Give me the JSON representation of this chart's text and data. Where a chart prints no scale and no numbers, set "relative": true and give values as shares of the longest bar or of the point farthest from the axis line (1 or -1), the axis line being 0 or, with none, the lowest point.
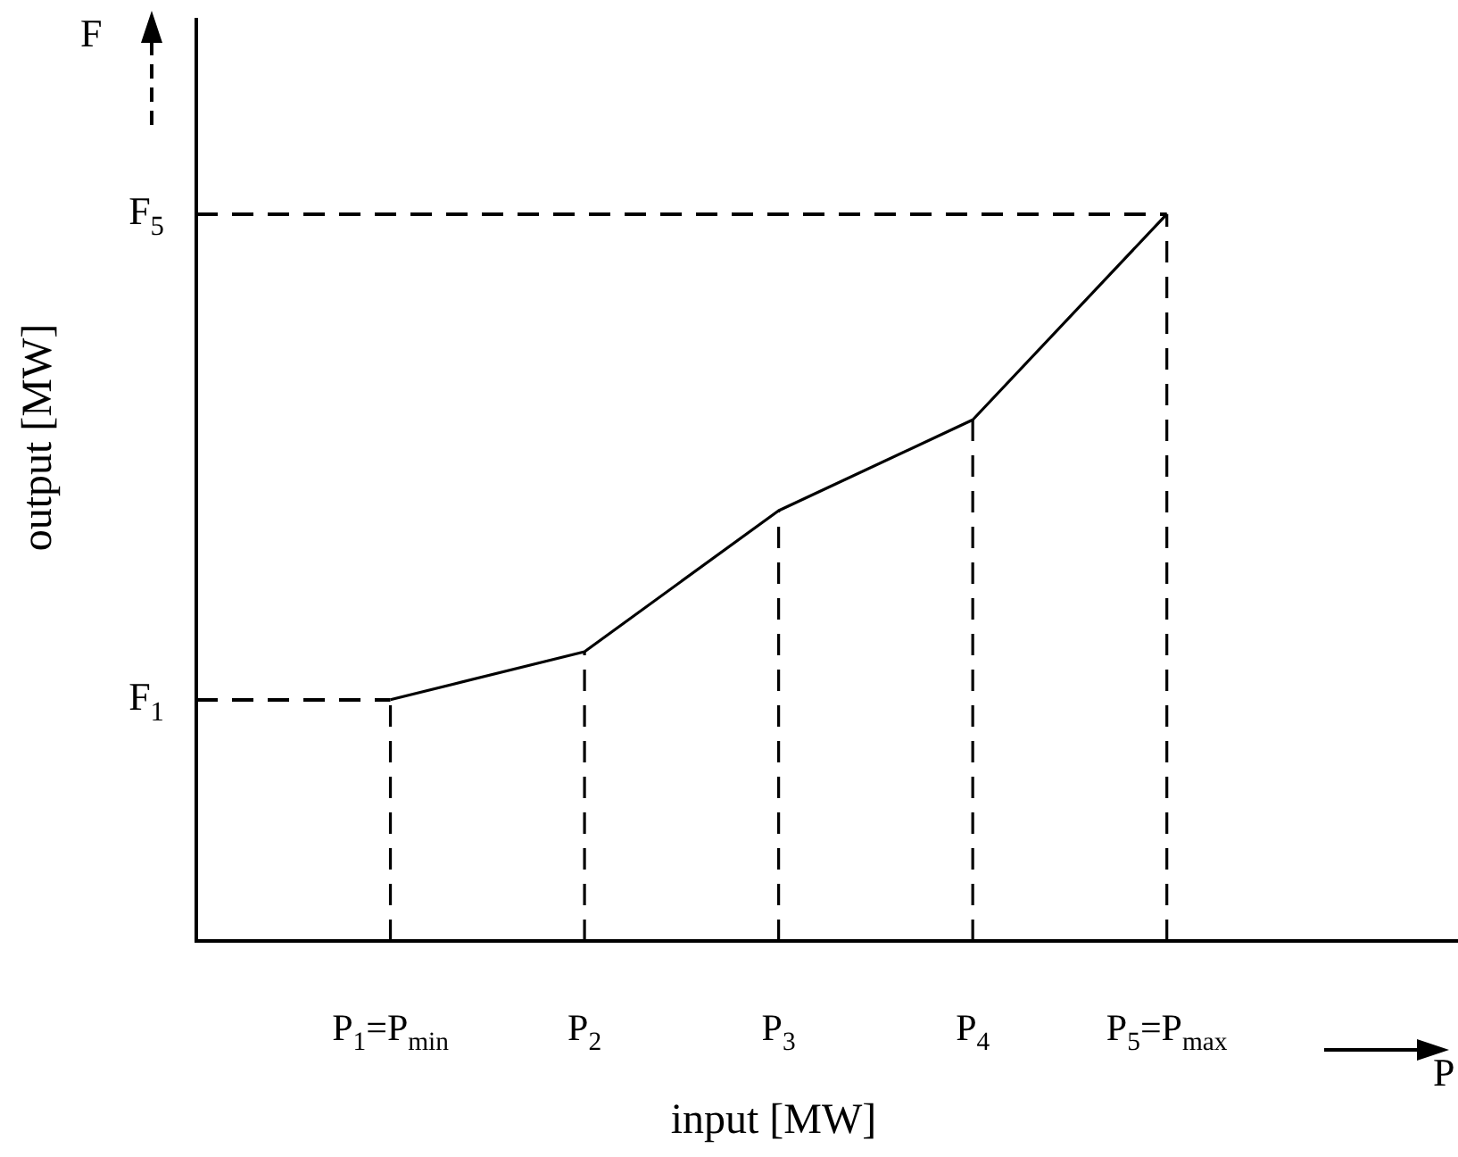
{
  "chart_data": {
    "type": "line",
    "xlabel": "input [MW]",
    "ylabel": "output [MW]",
    "relative": true,
    "x": [
      1,
      2,
      3,
      4,
      5
    ],
    "series": [
      {
        "color": "#000000",
        "values": [
          0.332,
          0.398,
          0.592,
          0.717,
          1
        ]
      }
    ],
    "xlim": [
      0,
      6.5
    ],
    "xticks": [
      {
        "value": 1,
        "label": "P$_{1}$=P$_{min}$"
      },
      {
        "value": 2,
        "label": "P$_{2}$"
      },
      {
        "value": 3,
        "label": "P$_{3}$"
      },
      {
        "value": 4,
        "label": "P$_{4}$"
      },
      {
        "value": 5,
        "label": "P$_{5}$=P$_{max}$"
      }
    ],
    "ref_lines": [
      {
        "axis": "y",
        "value": 0.332,
        "label": "F$_{1}$",
        "line_style": "dashed"
      },
      {
        "axis": "y",
        "value": 1,
        "label": "F$_{5}$",
        "line_style": "dashed"
      },
      {
        "axis": "x",
        "value": 1,
        "line_style": "dashed"
      },
      {
        "axis": "x",
        "value": 2,
        "line_style": "dashed"
      },
      {
        "axis": "x",
        "value": 3,
        "line_style": "dashed"
      },
      {
        "axis": "x",
        "value": 4,
        "line_style": "dashed"
      },
      {
        "axis": "x",
        "value": 5,
        "line_style": "dashed"
      }
    ],
    "annotations": [
      "F",
      "P"
    ],
    "grid": false,
    "legend": false,
    "marker": "none",
    "line_style": "solid"
  }
}
